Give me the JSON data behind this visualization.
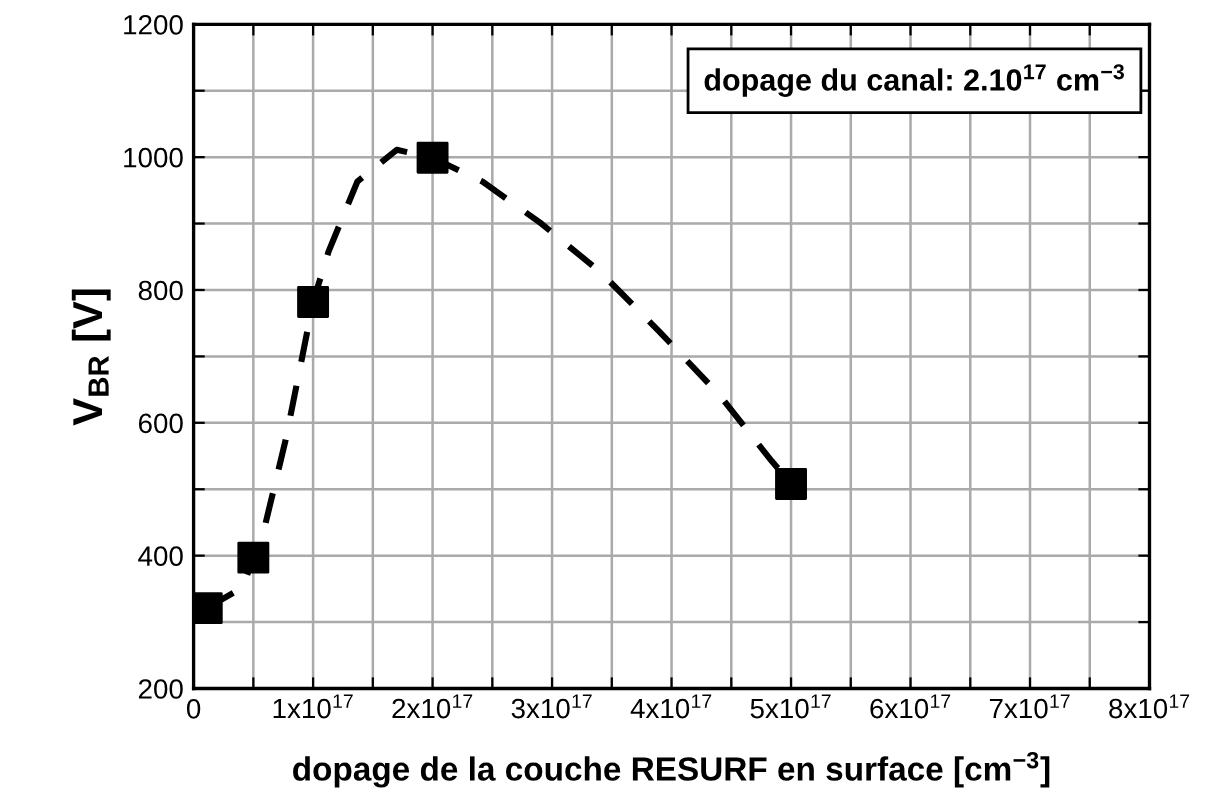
{
  "chart_data": {
    "type": "scatter",
    "xlabel": "dopage de la couche RESURF en surface [cm$^{−3}$]",
    "ylabel": "V$_{BR}$ [V]",
    "annotations": [
      "dopage du canal: 2.10$^{17}$ cm$^{−3}$"
    ],
    "series": [
      {
        "type": "line",
        "color": "#000000",
        "line_style": "dashed",
        "marker": "none",
        "x": [
          1.1e+16,
          4.1e+16,
          6e+16,
          7.7e+16,
          9.1e+16,
          1e+17,
          1.13e+17,
          1.37e+17,
          1.7e+17,
          2e+17,
          2.42e+17,
          2.91e+17,
          3.41e+17,
          3.9e+17,
          4.4e+17,
          4.84e+17,
          5e+17
        ],
        "values": [
          321,
          352,
          447,
          574,
          700,
          782,
          858,
          963,
          1011,
          999,
          963,
          900,
          826,
          737,
          642,
          542,
          508
        ]
      },
      {
        "color": "#000000",
        "marker": "square",
        "x": [
          1.1e+16,
          5e+16,
          1e+17,
          2e+17,
          5e+17
        ],
        "values": [
          321,
          397,
          782,
          999,
          508
        ]
      }
    ],
    "xlim": [
      0,
      8e+17
    ],
    "xticks": [
      0,
      {
        "value": 5e+16,
        "label": null
      },
      {
        "value": 1e+17,
        "label": "1x10$^{17}$"
      },
      {
        "value": 1.5e+17,
        "label": null
      },
      {
        "value": 2e+17,
        "label": "2x10$^{17}$"
      },
      {
        "value": 2.5e+17,
        "label": null
      },
      {
        "value": 3e+17,
        "label": "3x10$^{17}$"
      },
      {
        "value": 3.5e+17,
        "label": null
      },
      {
        "value": 4e+17,
        "label": "4x10$^{17}$"
      },
      {
        "value": 4.5e+17,
        "label": null
      },
      {
        "value": 5e+17,
        "label": "5x10$^{17}$"
      },
      {
        "value": 5.5e+17,
        "label": null
      },
      {
        "value": 6e+17,
        "label": "6x10$^{17}$"
      },
      {
        "value": 6.5e+17,
        "label": null
      },
      {
        "value": 7e+17,
        "label": "7x10$^{17}$"
      },
      {
        "value": 7.5e+17,
        "label": null
      },
      {
        "value": 8e+17,
        "label": "8x10$^{17}$"
      }
    ],
    "ylim": [
      200,
      1200
    ],
    "yticks": [
      200,
      {
        "value": 300,
        "label": null
      },
      400,
      {
        "value": 500,
        "label": null
      },
      600,
      {
        "value": 700,
        "label": null
      },
      800,
      {
        "value": 900,
        "label": null
      },
      1000,
      {
        "value": 1100,
        "label": null
      },
      1200
    ],
    "grid": true,
    "legend": false
  }
}
